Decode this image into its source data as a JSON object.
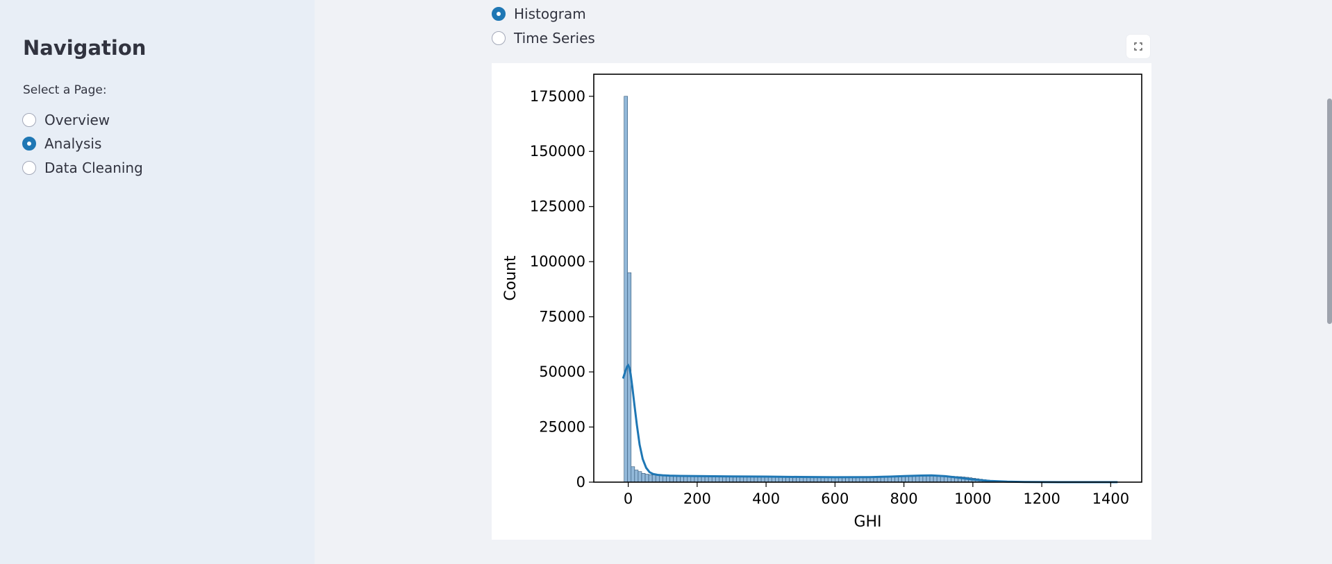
{
  "sidebar": {
    "title": "Navigation",
    "select_label": "Select a Page:",
    "options": [
      {
        "label": "Overview",
        "checked": false
      },
      {
        "label": "Analysis",
        "checked": true
      },
      {
        "label": "Data Cleaning",
        "checked": false
      }
    ]
  },
  "plot_type": {
    "options": [
      {
        "label": "Histogram",
        "checked": true
      },
      {
        "label": "Time Series",
        "checked": false
      }
    ]
  },
  "colors": {
    "accent": "#1f77b4",
    "bar_fill": "#92b8d9",
    "sidebar_bg": "#e8eef6",
    "page_bg": "#f0f2f6"
  },
  "icons": {
    "expand": "fullscreen-expand-icon"
  },
  "chart_data": {
    "type": "bar",
    "xlabel": "GHI",
    "ylabel": "Count",
    "xlim": [
      -100,
      1490
    ],
    "ylim": [
      0,
      185000
    ],
    "xticks": [
      0,
      200,
      400,
      600,
      800,
      1000,
      1200,
      1400
    ],
    "yticks": [
      0,
      25000,
      50000,
      75000,
      100000,
      125000,
      150000,
      175000
    ],
    "grid": false,
    "bin_start": -12,
    "bin_width": 10.2,
    "counts": [
      175000,
      95000,
      7000,
      5500,
      4800,
      4000,
      3600,
      3400,
      3300,
      3200,
      3150,
      3100,
      3050,
      3000,
      2950,
      2900,
      2880,
      2860,
      2840,
      2820,
      2800,
      2790,
      2780,
      2770,
      2760,
      2750,
      2740,
      2730,
      2720,
      2710,
      2700,
      2690,
      2680,
      2670,
      2660,
      2650,
      2640,
      2630,
      2620,
      2610,
      2600,
      2590,
      2580,
      2570,
      2560,
      2550,
      2540,
      2530,
      2520,
      2510,
      2500,
      2490,
      2480,
      2470,
      2460,
      2450,
      2440,
      2430,
      2420,
      2410,
      2400,
      2390,
      2380,
      2370,
      2360,
      2350,
      2340,
      2330,
      2320,
      2310,
      2300,
      2300,
      2310,
      2320,
      2340,
      2360,
      2380,
      2400,
      2430,
      2460,
      2500,
      2540,
      2580,
      2620,
      2660,
      2700,
      2740,
      2760,
      2780,
      2790,
      2780,
      2760,
      2720,
      2660,
      2580,
      2480,
      2360,
      2200,
      2000,
      1780,
      1560,
      1340,
      1120,
      920,
      740,
      580,
      440,
      330,
      240,
      170,
      120,
      80,
      50,
      30,
      20,
      12,
      8,
      5,
      3,
      2
    ],
    "kde": {
      "x": [
        -15,
        -8,
        -3,
        0,
        3,
        7,
        12,
        18,
        25,
        33,
        42,
        52,
        62,
        72,
        85,
        100,
        120,
        150,
        200,
        300,
        400,
        500,
        600,
        700,
        760,
        800,
        850,
        880,
        920,
        960,
        1000,
        1050,
        1100,
        1150,
        1200,
        1300,
        1420
      ],
      "y": [
        47000,
        50500,
        52500,
        53000,
        52000,
        49000,
        43000,
        35000,
        26000,
        17000,
        10500,
        6500,
        4500,
        3700,
        3300,
        3100,
        2950,
        2850,
        2750,
        2600,
        2500,
        2350,
        2250,
        2300,
        2500,
        2750,
        3000,
        3050,
        2700,
        2000,
        1200,
        550,
        220,
        80,
        30,
        5,
        0
      ]
    }
  }
}
